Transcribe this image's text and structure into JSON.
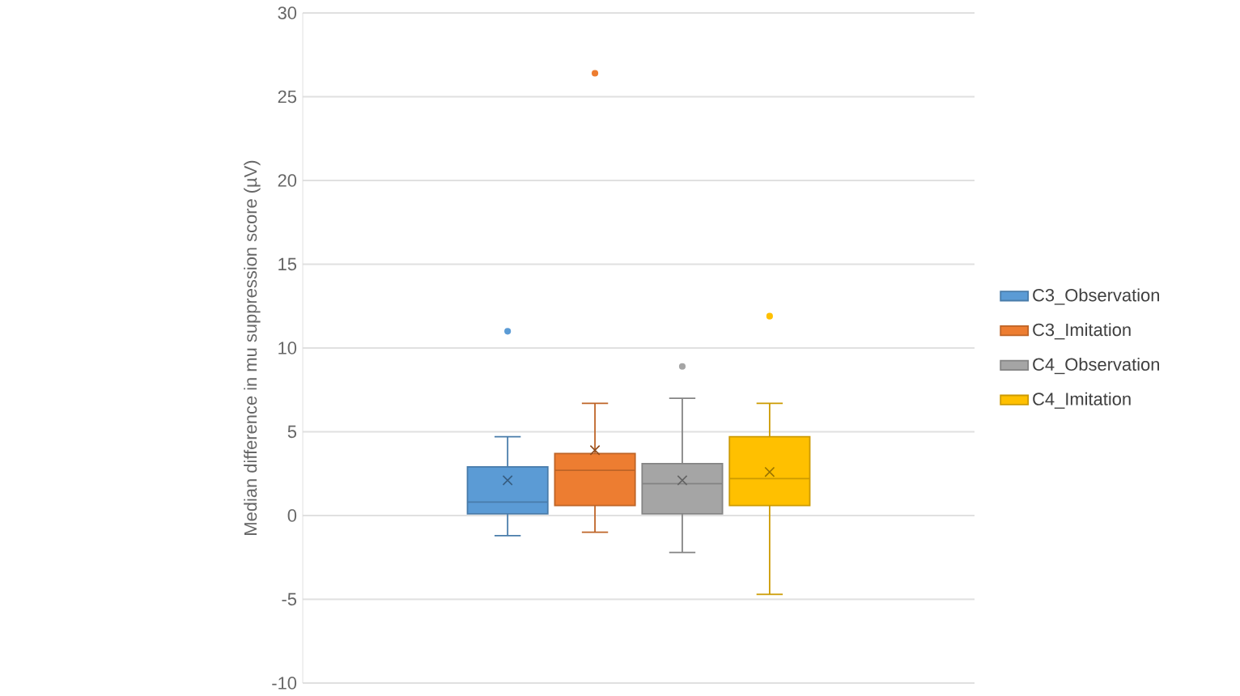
{
  "chart_data": {
    "type": "box",
    "ylabel": "Median difference in mu suppression score (µV)",
    "categories": [
      null
    ],
    "ylim": [
      -10,
      30
    ],
    "yticks": [
      -10,
      -5,
      0,
      5,
      10,
      15,
      20,
      25,
      30
    ],
    "grid": "y",
    "legend": "right",
    "series": [
      {
        "name": "C3_Observation",
        "color": "#5b9bd5",
        "boxes": [
          {
            "low": -1.2,
            "q1": 0.1,
            "median": 0.8,
            "q3": 2.9,
            "high": 4.7,
            "mean": 2.1,
            "outliers": [
              11
            ]
          }
        ]
      },
      {
        "name": "C3_Imitation",
        "color": "#ed7d31",
        "boxes": [
          {
            "low": -1.0,
            "q1": 0.6,
            "median": 2.7,
            "q3": 3.7,
            "high": 6.7,
            "mean": 3.9,
            "outliers": [
              26.4
            ]
          }
        ]
      },
      {
        "name": "C4_Observation",
        "color": "#a5a5a5",
        "boxes": [
          {
            "low": -2.2,
            "q1": 0.1,
            "median": 1.9,
            "q3": 3.1,
            "high": 7.0,
            "mean": 2.1,
            "outliers": [
              8.9
            ]
          }
        ]
      },
      {
        "name": "C4_Imitation",
        "color": "#ffc000",
        "boxes": [
          {
            "low": -4.7,
            "q1": 0.6,
            "median": 2.2,
            "q3": 4.7,
            "high": 6.7,
            "mean": 2.6,
            "outliers": [
              11.9
            ]
          }
        ]
      }
    ]
  }
}
